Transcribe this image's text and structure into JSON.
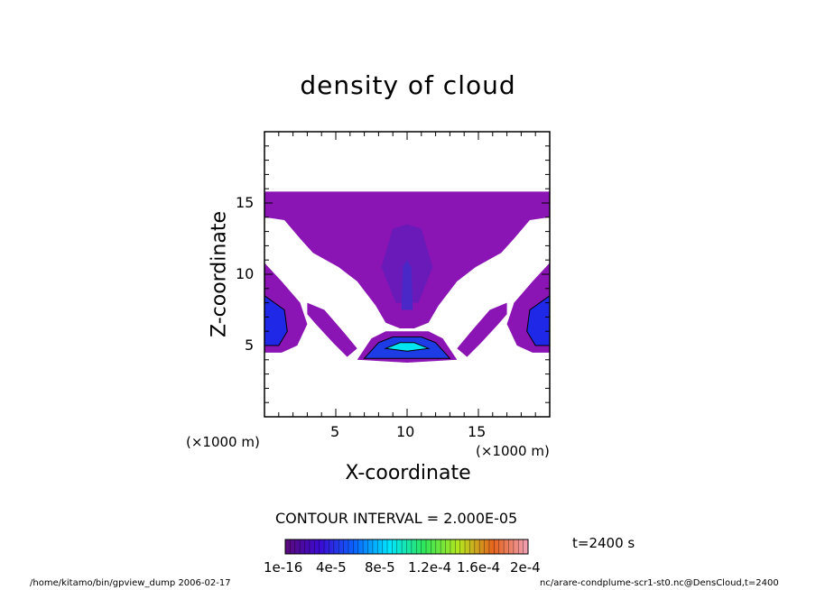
{
  "chart_data": {
    "type": "heatmap",
    "title": "density of cloud",
    "xlabel": "X-coordinate",
    "ylabel": "Z-coordinate",
    "x_unit_label": "(×1000 m)",
    "y_unit_label": "(×1000 m)",
    "xlim": [
      0,
      20
    ],
    "ylim": [
      0,
      20
    ],
    "x_ticks": [
      5,
      10,
      15
    ],
    "y_ticks": [
      5,
      10,
      15
    ],
    "contour_interval": "CONTOUR INTERVAL = 2.000E-05",
    "time": "t=2400 s",
    "colorbar": {
      "labels": [
        "1e-16",
        "4e-5",
        "8e-5",
        "1.2e-4",
        "1.6e-4",
        "2e-4"
      ],
      "colors": [
        "#5a0a78",
        "#3c0ad2",
        "#0a64ff",
        "#00e6ff",
        "#2ee65a",
        "#b4e61e",
        "#e6641e",
        "#f0a0b4"
      ]
    },
    "regions": [
      {
        "name": "upper cloud layer",
        "level": "low",
        "color": "#8a14b4",
        "outline": [
          [
            0,
            14
          ],
          [
            0,
            15.8
          ],
          [
            20,
            15.8
          ],
          [
            20,
            14
          ],
          [
            18.6,
            13.8
          ],
          [
            17.5,
            12.5
          ],
          [
            16.6,
            11.5
          ],
          [
            14.8,
            10.5
          ],
          [
            13.5,
            9.5
          ],
          [
            12.2,
            7.8
          ],
          [
            11.5,
            6.6
          ],
          [
            10.5,
            6.2
          ],
          [
            9.5,
            6.2
          ],
          [
            8.5,
            6.6
          ],
          [
            7.8,
            7.8
          ],
          [
            6.5,
            9.5
          ],
          [
            5.2,
            10.5
          ],
          [
            3.4,
            11.5
          ],
          [
            2.5,
            12.5
          ],
          [
            1.4,
            13.8
          ]
        ]
      },
      {
        "name": "central column",
        "level": "medium",
        "color": "#6a1ab8",
        "outline": [
          [
            8.2,
            10.5
          ],
          [
            9.0,
            13.2
          ],
          [
            10,
            13.5
          ],
          [
            11,
            13.2
          ],
          [
            11.8,
            10.5
          ],
          [
            10.8,
            8
          ],
          [
            9.2,
            8
          ]
        ]
      },
      {
        "name": "central column core",
        "level": "medium-high",
        "color": "#4a28c8",
        "outline": [
          [
            9.6,
            7.5
          ],
          [
            9.7,
            10.5
          ],
          [
            10,
            11
          ],
          [
            10.3,
            10.5
          ],
          [
            10.4,
            7.5
          ]
        ]
      },
      {
        "name": "left lower cell",
        "level": "low",
        "color": "#8a14b4",
        "outline": [
          [
            0,
            4.5
          ],
          [
            0,
            10.8
          ],
          [
            1.2,
            9.5
          ],
          [
            2.5,
            8
          ],
          [
            3.0,
            6.5
          ],
          [
            2.3,
            5
          ],
          [
            1.2,
            4.5
          ]
        ]
      },
      {
        "name": "left lower cell core",
        "level": "high",
        "color": "#1e28e6",
        "outline": [
          [
            0,
            5
          ],
          [
            0,
            8.5
          ],
          [
            1.4,
            7.5
          ],
          [
            1.6,
            6
          ],
          [
            1,
            5
          ]
        ]
      },
      {
        "name": "right lower cell",
        "level": "low",
        "color": "#8a14b4",
        "outline": [
          [
            20,
            4.5
          ],
          [
            20,
            10.8
          ],
          [
            18.8,
            9.5
          ],
          [
            17.5,
            8
          ],
          [
            17.0,
            6.5
          ],
          [
            17.7,
            5
          ],
          [
            18.8,
            4.5
          ]
        ]
      },
      {
        "name": "right lower cell core",
        "level": "high",
        "color": "#1e28e6",
        "outline": [
          [
            20,
            5
          ],
          [
            20,
            8.5
          ],
          [
            18.6,
            7.5
          ],
          [
            18.4,
            6
          ],
          [
            19,
            5
          ]
        ]
      },
      {
        "name": "left arm",
        "level": "low",
        "color": "#8a14b4",
        "outline": [
          [
            3,
            8
          ],
          [
            4.2,
            7.5
          ],
          [
            5.5,
            6
          ],
          [
            6.5,
            4.8
          ],
          [
            5.8,
            4.2
          ],
          [
            4.8,
            5.2
          ],
          [
            3.6,
            6.5
          ],
          [
            3.0,
            7.2
          ]
        ]
      },
      {
        "name": "right arm",
        "level": "low",
        "color": "#8a14b4",
        "outline": [
          [
            17,
            8
          ],
          [
            15.8,
            7.5
          ],
          [
            14.5,
            6
          ],
          [
            13.5,
            4.8
          ],
          [
            14.2,
            4.2
          ],
          [
            15.2,
            5.2
          ],
          [
            16.4,
            6.5
          ],
          [
            17.0,
            7.2
          ]
        ]
      },
      {
        "name": "central bright cell",
        "level": "low",
        "color": "#8a14b4",
        "outline": [
          [
            6.5,
            4
          ],
          [
            7.5,
            5.5
          ],
          [
            8.5,
            6
          ],
          [
            11.5,
            6
          ],
          [
            12.5,
            5.5
          ],
          [
            13.5,
            4
          ],
          [
            10,
            3.8
          ]
        ]
      },
      {
        "name": "central bright cell mid",
        "level": "high",
        "color": "#1e3ce6",
        "outline": [
          [
            7,
            4.1
          ],
          [
            8,
            5.2
          ],
          [
            9,
            5.6
          ],
          [
            11,
            5.6
          ],
          [
            12,
            5.2
          ],
          [
            13,
            4.1
          ]
        ]
      },
      {
        "name": "central bright cell core",
        "level": "highest",
        "color": "#00e6f0",
        "outline": [
          [
            8.5,
            4.8
          ],
          [
            9.5,
            5.2
          ],
          [
            10.5,
            5.2
          ],
          [
            11.5,
            4.8
          ],
          [
            10,
            4.6
          ]
        ]
      }
    ]
  },
  "axes": {
    "x_ticks": [
      "5",
      "10",
      "15"
    ],
    "y_ticks": [
      "5",
      "10",
      "15"
    ]
  },
  "footer": {
    "left": "/home/kitamo/bin/gpview_dump  2006-02-17",
    "right": "nc/arare-condplume-scr1-st0.nc@DensCloud,t=2400"
  }
}
